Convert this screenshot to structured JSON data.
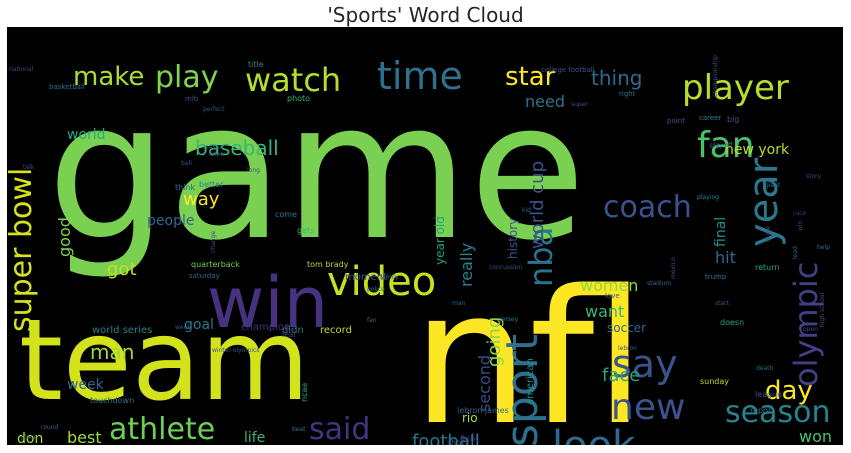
{
  "chart_data": {
    "type": "word_cloud",
    "title": "'Sports' Word Cloud",
    "background": "#000000",
    "palette": [
      "#fde725",
      "#7ad151",
      "#22a884",
      "#2a788e",
      "#414487",
      "#440154"
    ],
    "words": [
      {
        "text": "game",
        "weight": 100,
        "color": "#7ad151",
        "orient": "h"
      },
      {
        "text": "nfl",
        "weight": 96,
        "color": "#fde725",
        "orient": "h"
      },
      {
        "text": "team",
        "weight": 72,
        "color": "#d2e21b",
        "orient": "h"
      },
      {
        "text": "win",
        "weight": 40,
        "color": "#46327e",
        "orient": "h"
      },
      {
        "text": "player",
        "weight": 30,
        "color": "#b5de2b",
        "orient": "h"
      },
      {
        "text": "video",
        "weight": 25,
        "color": "#c8e020",
        "orient": "h"
      },
      {
        "text": "time",
        "weight": 25,
        "color": "#2c728e",
        "orient": "h"
      },
      {
        "text": "watch",
        "weight": 22,
        "color": "#b5de2b",
        "orient": "h"
      },
      {
        "text": "fan",
        "weight": 25,
        "color": "#4ac16d",
        "orient": "h"
      },
      {
        "text": "say",
        "weight": 25,
        "color": "#3b528b",
        "orient": "h"
      },
      {
        "text": "sport",
        "weight": 26,
        "color": "#2d708e",
        "orient": "v"
      },
      {
        "text": "year",
        "weight": 28,
        "color": "#2a788e",
        "orient": "v"
      },
      {
        "text": "olympic",
        "weight": 24,
        "color": "#433e85",
        "orient": "v"
      },
      {
        "text": "nba",
        "weight": 22,
        "color": "#2c728e",
        "orient": "v"
      },
      {
        "text": "super bowl",
        "weight": 21,
        "color": "#d8e219",
        "orient": "v"
      },
      {
        "text": "coach",
        "weight": 21,
        "color": "#3b528b",
        "orient": "h"
      },
      {
        "text": "play",
        "weight": 20,
        "color": "#7fd34e",
        "orient": "h"
      },
      {
        "text": "star",
        "weight": 18,
        "color": "#fde725",
        "orient": "h"
      },
      {
        "text": "make",
        "weight": 19,
        "color": "#addc30",
        "orient": "h"
      },
      {
        "text": "season",
        "weight": 20,
        "color": "#25838e",
        "orient": "h"
      },
      {
        "text": "look",
        "weight": 24,
        "color": "#31688e",
        "orient": "h"
      },
      {
        "text": "said",
        "weight": 21,
        "color": "#46327e",
        "orient": "h"
      },
      {
        "text": "athlete",
        "weight": 20,
        "color": "#6ece58",
        "orient": "h"
      },
      {
        "text": "new",
        "weight": 24,
        "color": "#3b528b",
        "orient": "h"
      },
      {
        "text": "day",
        "weight": 20,
        "color": "#fde725",
        "orient": "h"
      },
      {
        "text": "world cup",
        "weight": 13,
        "color": "#3b528b",
        "orient": "v"
      },
      {
        "text": "baseball",
        "weight": 15,
        "color": "#35b779",
        "orient": "h"
      },
      {
        "text": "football",
        "weight": 15,
        "color": "#2a788e",
        "orient": "h"
      },
      {
        "text": "thing",
        "weight": 14,
        "color": "#31688e",
        "orient": "h"
      },
      {
        "text": "need",
        "weight": 13,
        "color": "#2c728e",
        "orient": "h"
      },
      {
        "text": "way",
        "weight": 14,
        "color": "#fde725",
        "orient": "h"
      },
      {
        "text": "got",
        "weight": 14,
        "color": "#c2df23",
        "orient": "h"
      },
      {
        "text": "going",
        "weight": 14,
        "color": "#86d549",
        "orient": "v"
      },
      {
        "text": "really",
        "weight": 13,
        "color": "#26828e",
        "orient": "v"
      },
      {
        "text": "second",
        "weight": 13,
        "color": "#3e4989",
        "orient": "v"
      },
      {
        "text": "want",
        "weight": 14,
        "color": "#35b779",
        "orient": "h"
      },
      {
        "text": "women",
        "weight": 13,
        "color": "#8fd744",
        "orient": "h"
      },
      {
        "text": "face",
        "weight": 14,
        "color": "#22a884",
        "orient": "h"
      },
      {
        "text": "man",
        "weight": 15,
        "color": "#9fda3a",
        "orient": "h"
      },
      {
        "text": "best",
        "weight": 13,
        "color": "#a2da37",
        "orient": "h"
      },
      {
        "text": "won",
        "weight": 13,
        "color": "#4ac16d",
        "orient": "h"
      },
      {
        "text": "hit",
        "weight": 13,
        "color": "#31688e",
        "orient": "h"
      },
      {
        "text": "final",
        "weight": 13,
        "color": "#21918c",
        "orient": "v"
      },
      {
        "text": "good",
        "weight": 11,
        "color": "#7fd34e",
        "orient": "v"
      },
      {
        "text": "world",
        "weight": 11,
        "color": "#22a884",
        "orient": "h"
      },
      {
        "text": "people",
        "weight": 11,
        "color": "#31688e",
        "orient": "h"
      },
      {
        "text": "goal",
        "weight": 10,
        "color": "#2a788e",
        "orient": "h"
      },
      {
        "text": "history",
        "weight": 10,
        "color": "#3b528b",
        "orient": "v"
      },
      {
        "text": "new york",
        "weight": 10,
        "color": "#b5de2b",
        "orient": "h"
      },
      {
        "text": "life",
        "weight": 10,
        "color": "#35b779",
        "orient": "h"
      },
      {
        "text": "week",
        "weight": 11,
        "color": "#31688e",
        "orient": "h"
      },
      {
        "text": "don",
        "weight": 10,
        "color": "#b5de2b",
        "orient": "h"
      },
      {
        "text": "soccer",
        "weight": 10,
        "color": "#31688e",
        "orient": "h"
      },
      {
        "text": "field",
        "weight": 10,
        "color": "#3b528b",
        "orient": "h"
      },
      {
        "text": "year old",
        "weight": 9,
        "color": "#1fa187",
        "orient": "v"
      },
      {
        "text": "american",
        "weight": 8,
        "color": "#20928c",
        "orient": "v"
      },
      {
        "text": "rio",
        "weight": 9,
        "color": "#addc30",
        "orient": "h"
      },
      {
        "text": "champion",
        "weight": 7,
        "color": "#46327e",
        "orient": "h"
      },
      {
        "text": "record",
        "weight": 7,
        "color": "#b5de2b",
        "orient": "h"
      },
      {
        "text": "didn",
        "weight": 7,
        "color": "#2c728e",
        "orient": "h"
      },
      {
        "text": "world series",
        "weight": 7,
        "color": "#26828e",
        "orient": "h"
      },
      {
        "text": "moment",
        "weight": 7,
        "color": "#3e4989",
        "orient": "h"
      },
      {
        "text": "tom brady",
        "weight": 6,
        "color": "#b5de2b",
        "orient": "h"
      },
      {
        "text": "quarterback",
        "weight": 6,
        "color": "#6ece58",
        "orient": "h"
      },
      {
        "text": "touchdown",
        "weight": 6,
        "color": "#2c728e",
        "orient": "h"
      },
      {
        "text": "nfl player",
        "weight": 6,
        "color": "#6ece58",
        "orient": "h"
      },
      {
        "text": "lebron james",
        "weight": 6,
        "color": "#31688e",
        "orient": "h"
      },
      {
        "text": "sunday",
        "weight": 6,
        "color": "#b5de2b",
        "orient": "h"
      },
      {
        "text": "report",
        "weight": 6,
        "color": "#2c728e",
        "orient": "h"
      },
      {
        "text": "league",
        "weight": 6,
        "color": "#3b528b",
        "orient": "h"
      },
      {
        "text": "return",
        "weight": 6,
        "color": "#22a884",
        "orient": "h"
      },
      {
        "text": "fight",
        "weight": 6,
        "color": "#46327e",
        "orient": "h"
      },
      {
        "text": "ncaa",
        "weight": 6,
        "color": "#22a884",
        "orient": "v"
      },
      {
        "text": "big",
        "weight": 6,
        "color": "#3b528b",
        "orient": "h"
      },
      {
        "text": "think",
        "weight": 5,
        "color": "#31688e",
        "orient": "h"
      },
      {
        "text": "better",
        "weight": 5,
        "color": "#26828e",
        "orient": "h"
      },
      {
        "text": "gets",
        "weight": 5,
        "color": "#35b779",
        "orient": "h"
      },
      {
        "text": "come",
        "weight": 5,
        "color": "#2a788e",
        "orient": "h"
      },
      {
        "text": "shot",
        "weight": 5,
        "color": "#3b528b",
        "orient": "h"
      },
      {
        "text": "match",
        "weight": 5,
        "color": "#414487",
        "orient": "h"
      },
      {
        "text": "doesn",
        "weight": 5,
        "color": "#22a884",
        "orient": "h"
      },
      {
        "text": "mlb",
        "weight": 5,
        "color": "#3b528b",
        "orient": "h"
      },
      {
        "text": "basketball",
        "weight": 5,
        "color": "#2c728e",
        "orient": "h"
      },
      {
        "text": "title",
        "weight": 5,
        "color": "#26828e",
        "orient": "h"
      },
      {
        "text": "photo",
        "weight": 5,
        "color": "#35b779",
        "orient": "h"
      },
      {
        "text": "career",
        "weight": 5,
        "color": "#26828e",
        "orient": "h"
      },
      {
        "text": "saturday",
        "weight": 5,
        "color": "#31688e",
        "orient": "h"
      },
      {
        "text": "point",
        "weight": 4,
        "color": "#3b528b",
        "orient": "h"
      },
      {
        "text": "right",
        "weight": 4,
        "color": "#2c728e",
        "orient": "h"
      },
      {
        "text": "love",
        "weight": 4,
        "color": "#31688e",
        "orient": "h"
      },
      {
        "text": "trump",
        "weight": 4,
        "color": "#2c728e",
        "orient": "h"
      },
      {
        "text": "real",
        "weight": 4,
        "color": "#3e4989",
        "orient": "h"
      },
      {
        "text": "football player",
        "weight": 4,
        "color": "#46327e",
        "orient": "h"
      },
      {
        "text": "college football",
        "weight": 4,
        "color": "#3b528b",
        "orient": "h"
      },
      {
        "text": "perfect",
        "weight": 3,
        "color": "#3b528b",
        "orient": "h"
      },
      {
        "text": "winter olympics",
        "weight": 3,
        "color": "#3b528b",
        "orient": "h"
      },
      {
        "text": "gold medal",
        "weight": 3,
        "color": "#3b528b",
        "orient": "h"
      },
      {
        "text": "high school",
        "weight": 3,
        "color": "#3b528b",
        "orient": "v"
      },
      {
        "text": "playing",
        "weight": 3,
        "color": "#26828e",
        "orient": "h"
      },
      {
        "text": "play off",
        "weight": 3,
        "color": "#2c728e",
        "orient": "h"
      },
      {
        "text": "championship",
        "weight": 3,
        "color": "#3e4989",
        "orient": "v"
      },
      {
        "text": "stadium",
        "weight": 3,
        "color": "#31688e",
        "orient": "h"
      },
      {
        "text": "win",
        "weight": 3,
        "color": "#414487",
        "orient": "v"
      },
      {
        "text": "score",
        "weight": 3,
        "color": "#3b528b",
        "orient": "v"
      },
      {
        "text": "lead",
        "weight": 3,
        "color": "#31688e",
        "orient": "v"
      },
      {
        "text": "open",
        "weight": 3,
        "color": "#3e4989",
        "orient": "h"
      },
      {
        "text": "help",
        "weight": 3,
        "color": "#2c728e",
        "orient": "h"
      },
      {
        "text": "race",
        "weight": 3,
        "color": "#46327e",
        "orient": "h"
      },
      {
        "text": "beat",
        "weight": 3,
        "color": "#2c728e",
        "orient": "h"
      },
      {
        "text": "event",
        "weight": 3,
        "color": "#3b528b",
        "orient": "h"
      },
      {
        "text": "long",
        "weight": 3,
        "color": "#3b528b",
        "orient": "h"
      },
      {
        "text": "ball",
        "weight": 3,
        "color": "#3b528b",
        "orient": "h"
      },
      {
        "text": "reason",
        "weight": 3,
        "color": "#31688e",
        "orient": "h"
      },
      {
        "text": "family",
        "weight": 3,
        "color": "#31688e",
        "orient": "h"
      },
      {
        "text": "fan",
        "weight": 3,
        "color": "#31688e",
        "orient": "h"
      },
      {
        "text": "lebron",
        "weight": 3,
        "color": "#3b528b",
        "orient": "h"
      },
      {
        "text": "death",
        "weight": 3,
        "color": "#2c728e",
        "orient": "h"
      },
      {
        "text": "story",
        "weight": 3,
        "color": "#3e4989",
        "orient": "h"
      },
      {
        "text": "giant",
        "weight": 3,
        "color": "#2a788e",
        "orient": "h"
      },
      {
        "text": "concussion",
        "weight": 3,
        "color": "#3b528b",
        "orient": "h"
      },
      {
        "text": "jersey",
        "weight": 3,
        "color": "#26828e",
        "orient": "h"
      },
      {
        "text": "mexico",
        "weight": 3,
        "color": "#3b528b",
        "orient": "v"
      },
      {
        "text": "man",
        "weight": 3,
        "color": "#31688e",
        "orient": "h"
      },
      {
        "text": "kid",
        "weight": 3,
        "color": "#31688e",
        "orient": "h"
      },
      {
        "text": "change",
        "weight": 3,
        "color": "#3e4989",
        "orient": "v"
      },
      {
        "text": "know",
        "weight": 3,
        "color": "#3b528b",
        "orient": "h"
      },
      {
        "text": "talk",
        "weight": 3,
        "color": "#3b528b",
        "orient": "h"
      },
      {
        "text": "place",
        "weight": 3,
        "color": "#2c728e",
        "orient": "h"
      },
      {
        "text": "round",
        "weight": 3,
        "color": "#31688e",
        "orient": "h"
      },
      {
        "text": "happen",
        "weight": 3,
        "color": "#3b528b",
        "orient": "h"
      },
      {
        "text": "national",
        "weight": 3,
        "color": "#3e4989",
        "orient": "h"
      },
      {
        "text": "police",
        "weight": 3,
        "color": "#2c728e",
        "orient": "h"
      },
      {
        "text": "super",
        "weight": 3,
        "color": "#3b528b",
        "orient": "h"
      },
      {
        "text": "start",
        "weight": 3,
        "color": "#3b528b",
        "orient": "h"
      },
      {
        "text": "week",
        "weight": 3,
        "color": "#3b528b",
        "orient": "h"
      }
    ]
  }
}
